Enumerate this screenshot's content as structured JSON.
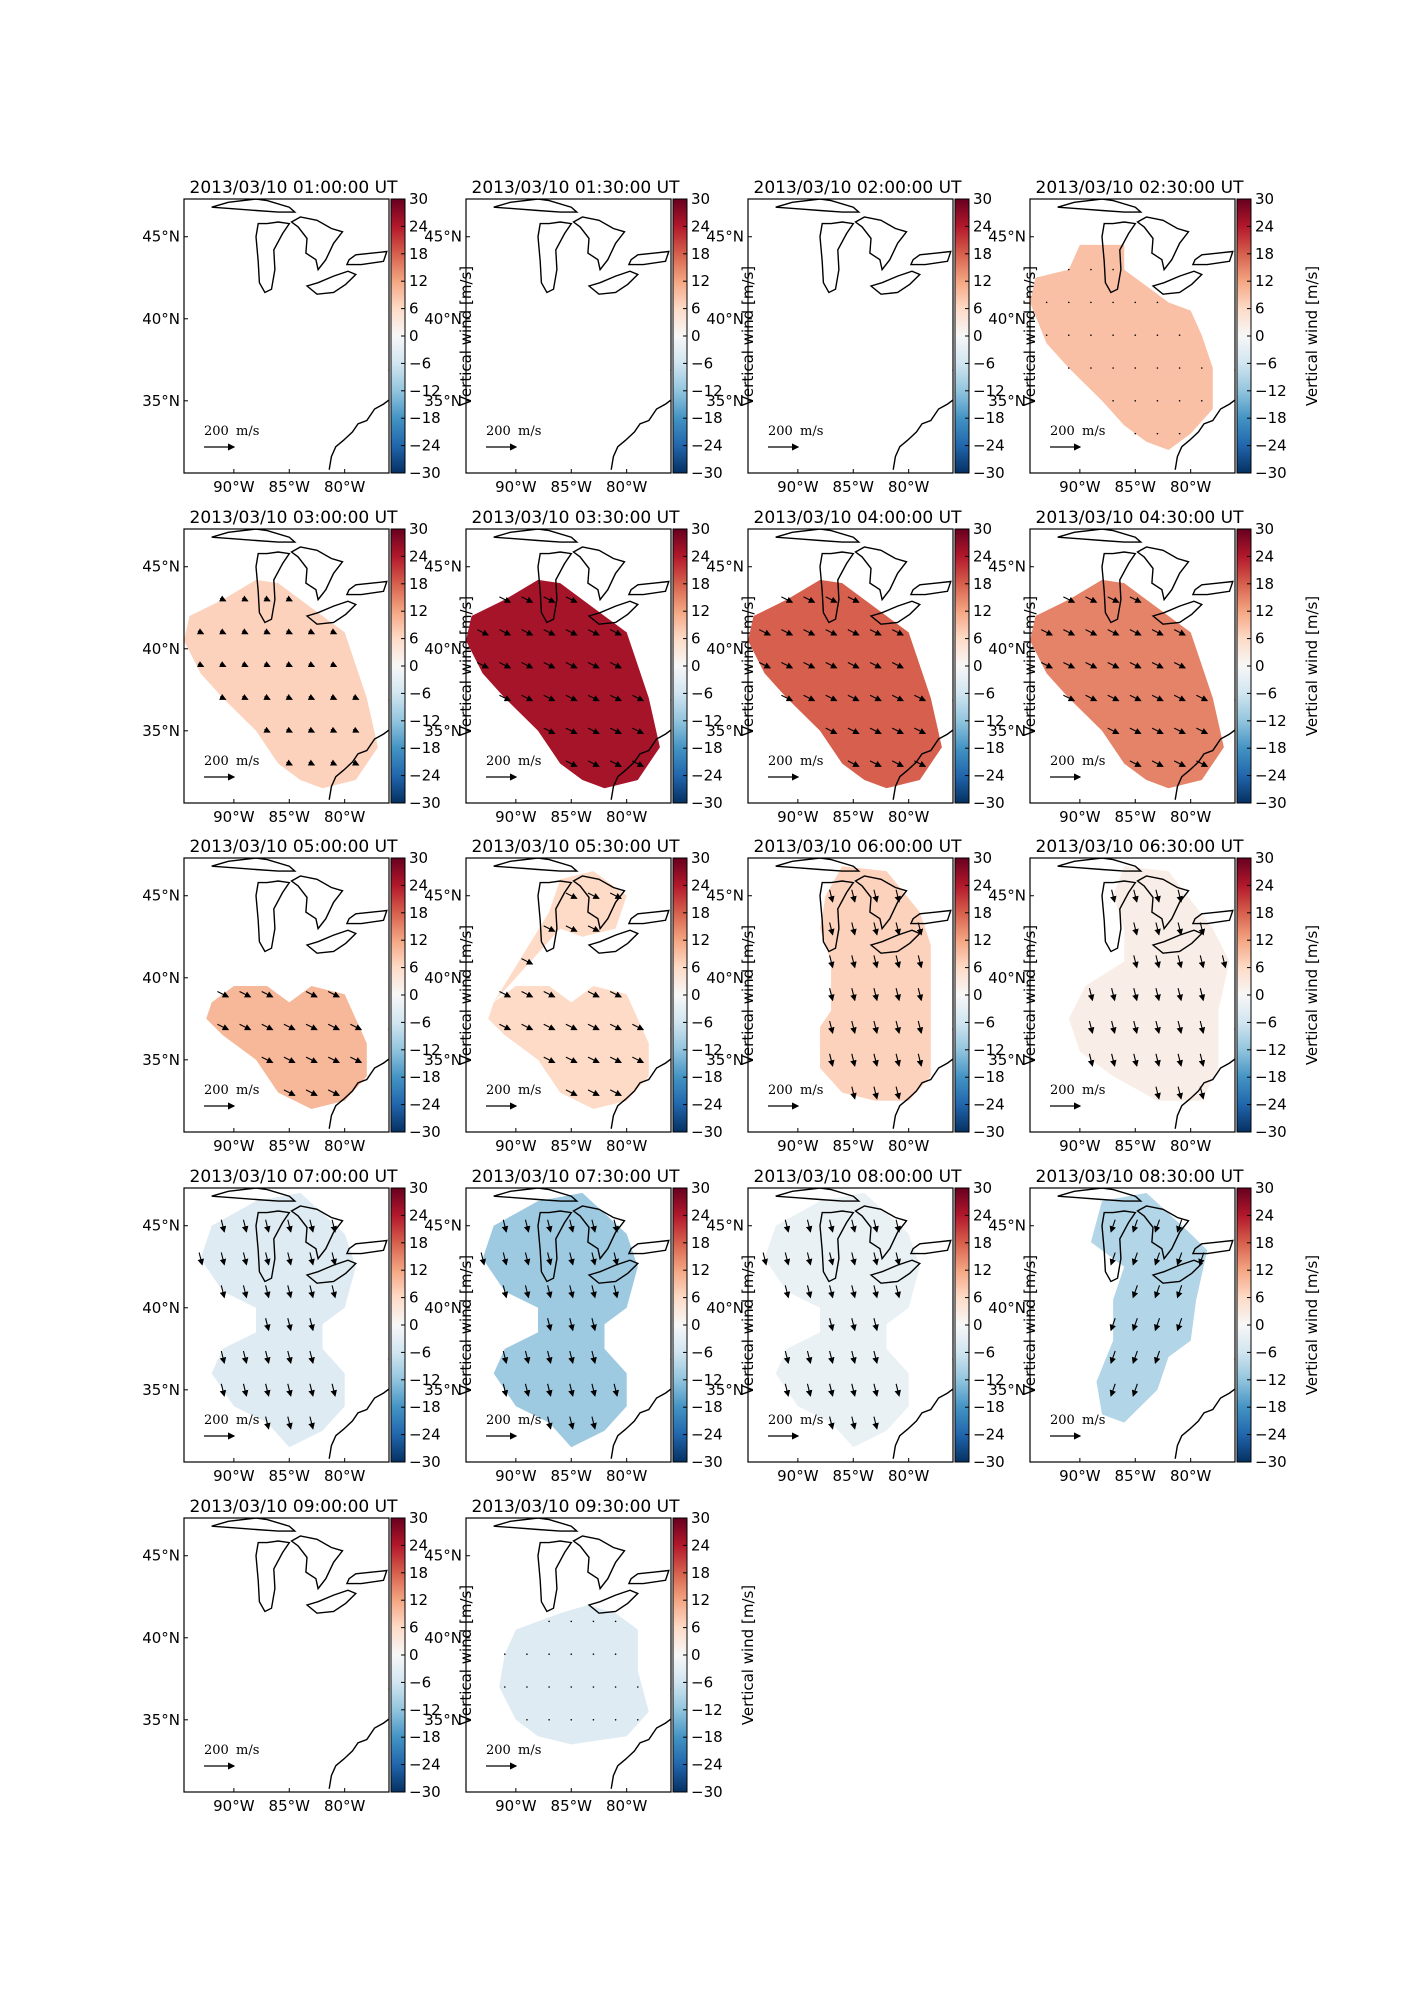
{
  "figure": {
    "colorbar_label": "Vertical wind [m/s]",
    "colorbar_ticks": [
      30,
      24,
      18,
      12,
      6,
      0,
      -6,
      -12,
      -18,
      -24,
      -30
    ],
    "colorbar_tick_labels": [
      "30",
      "24",
      "18",
      "12",
      "6",
      "0",
      "−6",
      "−12",
      "−18",
      "−24",
      "−30"
    ],
    "colorbar_range": [
      -30,
      30
    ],
    "lon_tick_labels": [
      "90°W",
      "85°W",
      "80°W"
    ],
    "lat_tick_labels": [
      "45°N",
      "40°N",
      "35°N"
    ],
    "scale_arrow_value": "200",
    "scale_arrow_unit": "m/s",
    "colormap": "RdBu_r",
    "colors": {
      "line": "#000000",
      "red_max": "#67001f",
      "blue_max": "#053061",
      "neutral": "#f7f7f7"
    },
    "panels": [
      {
        "title": "2013/03/10 01:00:00 UT",
        "region": "none",
        "value": null,
        "arrow_pattern": "none"
      },
      {
        "title": "2013/03/10 01:30:00 UT",
        "region": "none",
        "value": null,
        "arrow_pattern": "none"
      },
      {
        "title": "2013/03/10 02:00:00 UT",
        "region": "none",
        "value": null,
        "arrow_pattern": "none"
      },
      {
        "title": "2013/03/10 02:30:00 UT",
        "region": "blobA",
        "value": 9,
        "arrow_pattern": "dots"
      },
      {
        "title": "2013/03/10 03:00:00 UT",
        "region": "blobB",
        "value": 7,
        "arrow_pattern": "southeast_small"
      },
      {
        "title": "2013/03/10 03:30:00 UT",
        "region": "blobB",
        "value": 25,
        "arrow_pattern": "southeast"
      },
      {
        "title": "2013/03/10 04:00:00 UT",
        "region": "blobB",
        "value": 18,
        "arrow_pattern": "southeast"
      },
      {
        "title": "2013/03/10 04:30:00 UT",
        "region": "blobB",
        "value": 15,
        "arrow_pattern": "southeast"
      },
      {
        "title": "2013/03/10 05:00:00 UT",
        "region": "blobC",
        "value": 10,
        "arrow_pattern": "southeast"
      },
      {
        "title": "2013/03/10 05:30:00 UT",
        "region": "blobD",
        "value": 6,
        "arrow_pattern": "southeast"
      },
      {
        "title": "2013/03/10 06:00:00 UT",
        "region": "blobE",
        "value": 7,
        "arrow_pattern": "south"
      },
      {
        "title": "2013/03/10 06:30:00 UT",
        "region": "blobF",
        "value": 2,
        "arrow_pattern": "south"
      },
      {
        "title": "2013/03/10 07:00:00 UT",
        "region": "blobG",
        "value": -4,
        "arrow_pattern": "south"
      },
      {
        "title": "2013/03/10 07:30:00 UT",
        "region": "blobG",
        "value": -11,
        "arrow_pattern": "south"
      },
      {
        "title": "2013/03/10 08:00:00 UT",
        "region": "blobG",
        "value": -2,
        "arrow_pattern": "south"
      },
      {
        "title": "2013/03/10 08:30:00 UT",
        "region": "blobH",
        "value": -9,
        "arrow_pattern": "southwest"
      },
      {
        "title": "2013/03/10 09:00:00 UT",
        "region": "none",
        "value": null,
        "arrow_pattern": "none"
      },
      {
        "title": "2013/03/10 09:30:00 UT",
        "region": "blobI",
        "value": -4,
        "arrow_pattern": "dots"
      }
    ]
  }
}
